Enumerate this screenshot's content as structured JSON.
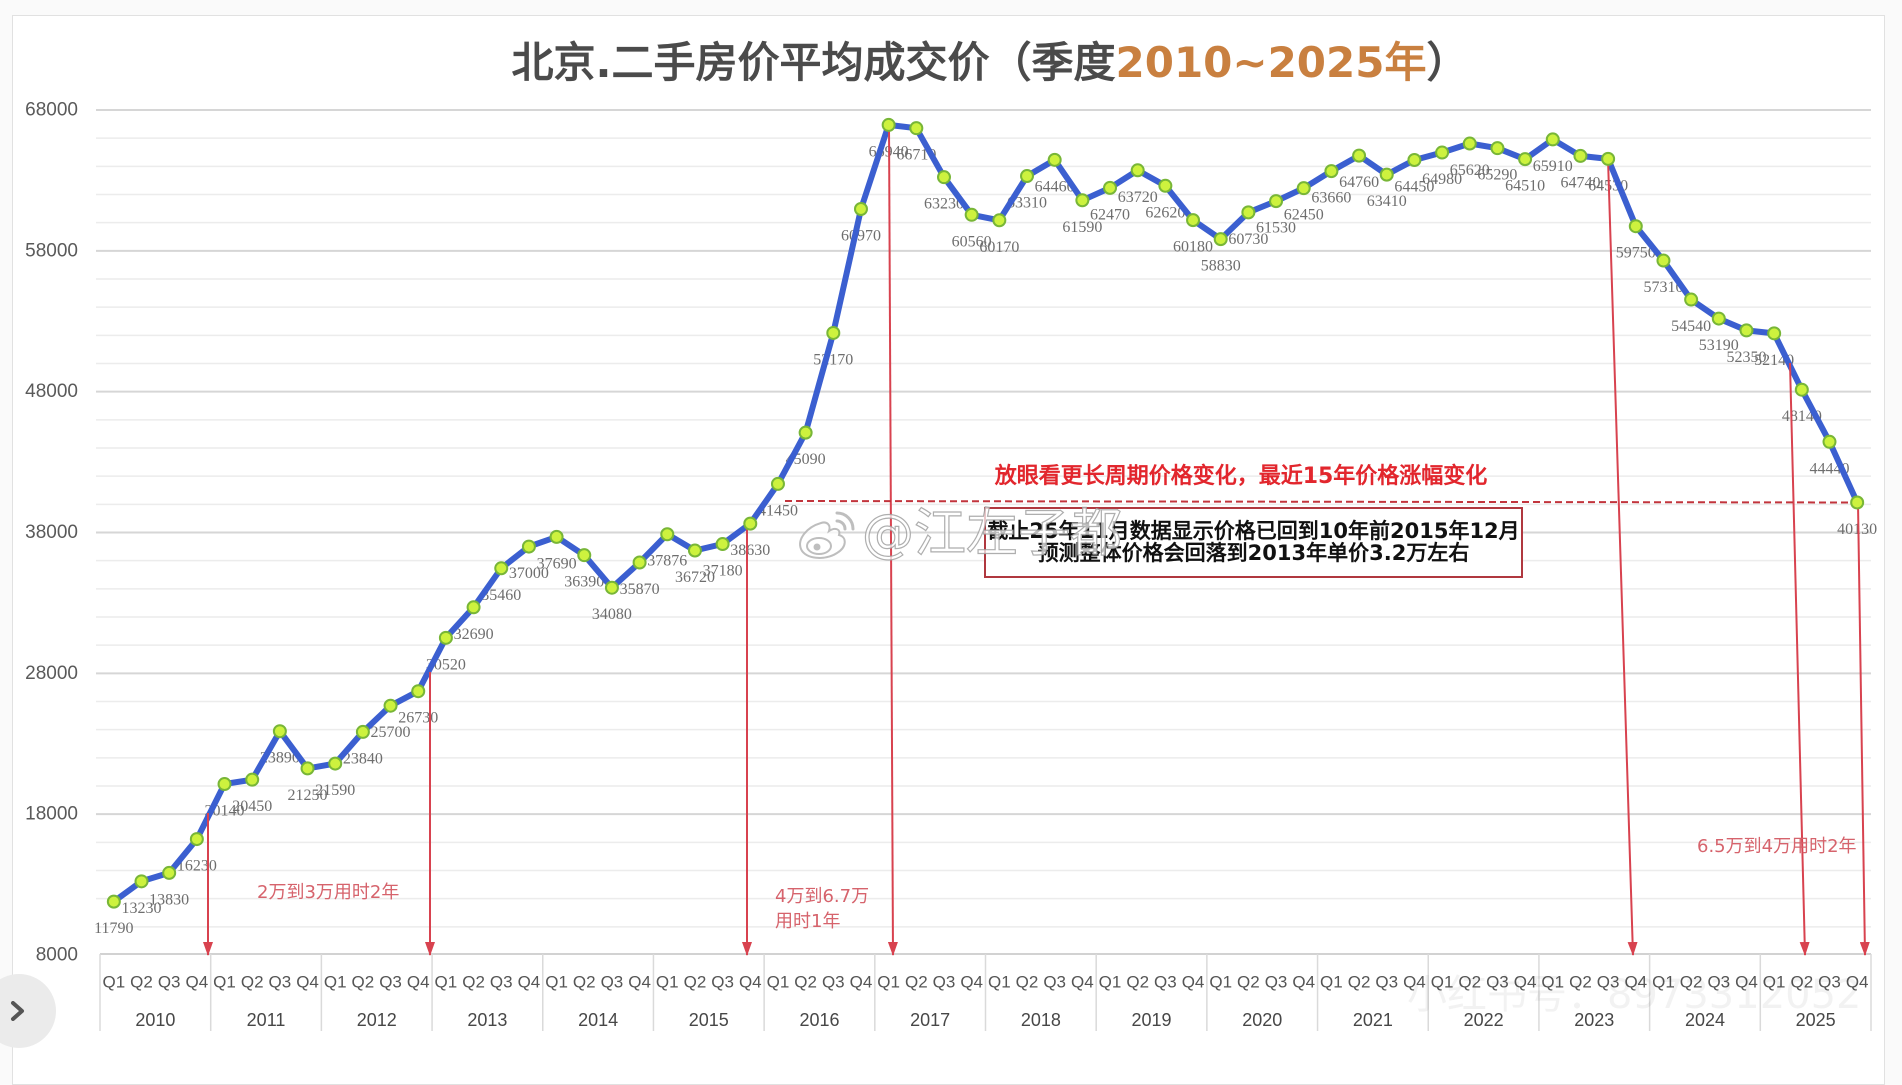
{
  "title": {
    "main": "北京.二手房价平均成交价",
    "paren_open": "（季度",
    "range": "2010~2025年",
    "paren_close": "）"
  },
  "watermarks": {
    "weibo": "@江左子都",
    "xiaohongshu": "小红书号：8973312052"
  },
  "nav": {
    "next_icon": "chevron-right-icon"
  },
  "colors": {
    "line": "#3b5fd0",
    "marker_fill": "#cdf23e",
    "marker_stroke": "#78b637",
    "arrow": "#d8424f",
    "reference_line": "#c2343c",
    "title_accent": "#c98040",
    "headline": "#e2262d",
    "annotation": "#d6636c"
  },
  "chart_data": {
    "type": "line",
    "title": "北京.二手房价平均成交价（季度2010~2025年）",
    "xlabel": "",
    "ylabel": "",
    "ylim": [
      8000,
      68000
    ],
    "yticks": [
      8000,
      18000,
      28000,
      38000,
      48000,
      58000,
      68000
    ],
    "major_step": 10000,
    "minor_step": 2000,
    "grid": true,
    "legend": "none",
    "data_labels": true,
    "quarters": [
      "Q1",
      "Q2",
      "Q3",
      "Q4"
    ],
    "years": [
      "2010",
      "2011",
      "2012",
      "2013",
      "2014",
      "2015",
      "2016",
      "2017",
      "2018",
      "2019",
      "2020",
      "2021",
      "2022",
      "2023",
      "2024",
      "2025"
    ],
    "categories": [
      "2010 Q1",
      "2010 Q2",
      "2010 Q3",
      "2010 Q4",
      "2011 Q1",
      "2011 Q2",
      "2011 Q3",
      "2011 Q4",
      "2012 Q1",
      "2012 Q2",
      "2012 Q3",
      "2012 Q4",
      "2013 Q1",
      "2013 Q2",
      "2013 Q3",
      "2013 Q4",
      "2014 Q1",
      "2014 Q2",
      "2014 Q3",
      "2014 Q4",
      "2015 Q1",
      "2015 Q2",
      "2015 Q3",
      "2015 Q4",
      "2016 Q1",
      "2016 Q2",
      "2016 Q3",
      "2016 Q4",
      "2017 Q1",
      "2017 Q2",
      "2017 Q3",
      "2017 Q4",
      "2018 Q1",
      "2018 Q2",
      "2018 Q3",
      "2018 Q4",
      "2019 Q1",
      "2019 Q2",
      "2019 Q3",
      "2019 Q4",
      "2020 Q1",
      "2020 Q2",
      "2020 Q3",
      "2020 Q4",
      "2021 Q1",
      "2021 Q2",
      "2021 Q3",
      "2021 Q4",
      "2022 Q1",
      "2022 Q2",
      "2022 Q3",
      "2022 Q4",
      "2023 Q1",
      "2023 Q2",
      "2023 Q3",
      "2023 Q4",
      "2024 Q1",
      "2024 Q2",
      "2024 Q3",
      "2024 Q4",
      "2025 Q1",
      "2025 Q2",
      "2025 Q3",
      "2025 Q4"
    ],
    "values": [
      11790,
      13230,
      13830,
      16230,
      20140,
      20450,
      23890,
      21250,
      21590,
      23840,
      25700,
      26730,
      30520,
      32690,
      35460,
      37000,
      37690,
      36390,
      34080,
      35870,
      37876,
      36720,
      37180,
      38630,
      41450,
      45090,
      52170,
      60970,
      66940,
      66710,
      63230,
      60560,
      60170,
      63310,
      64460,
      61590,
      62470,
      63720,
      62620,
      60180,
      58830,
      60730,
      61530,
      62450,
      63660,
      64760,
      63410,
      64450,
      64980,
      65620,
      65290,
      64510,
      65910,
      64740,
      64530,
      59750,
      57310,
      54540,
      53190,
      52350,
      52140,
      48140,
      44440,
      40130
    ],
    "annotations": {
      "rise_2w_to_3w": "2万到3万用时2年",
      "rise_4w_to_6_7w": [
        "4万到6.7万",
        "用时1年"
      ],
      "fall_6_5w_to_4w": "6.5万到4万用时2年",
      "headline": "放眼看更长周期价格变化，最近15年价格涨幅变化",
      "callout_box": [
        "截止25年11月数据显示价格已回到10年前2015年12月",
        "预测整体价格会回落到2013年单价3.2万左右"
      ]
    }
  }
}
